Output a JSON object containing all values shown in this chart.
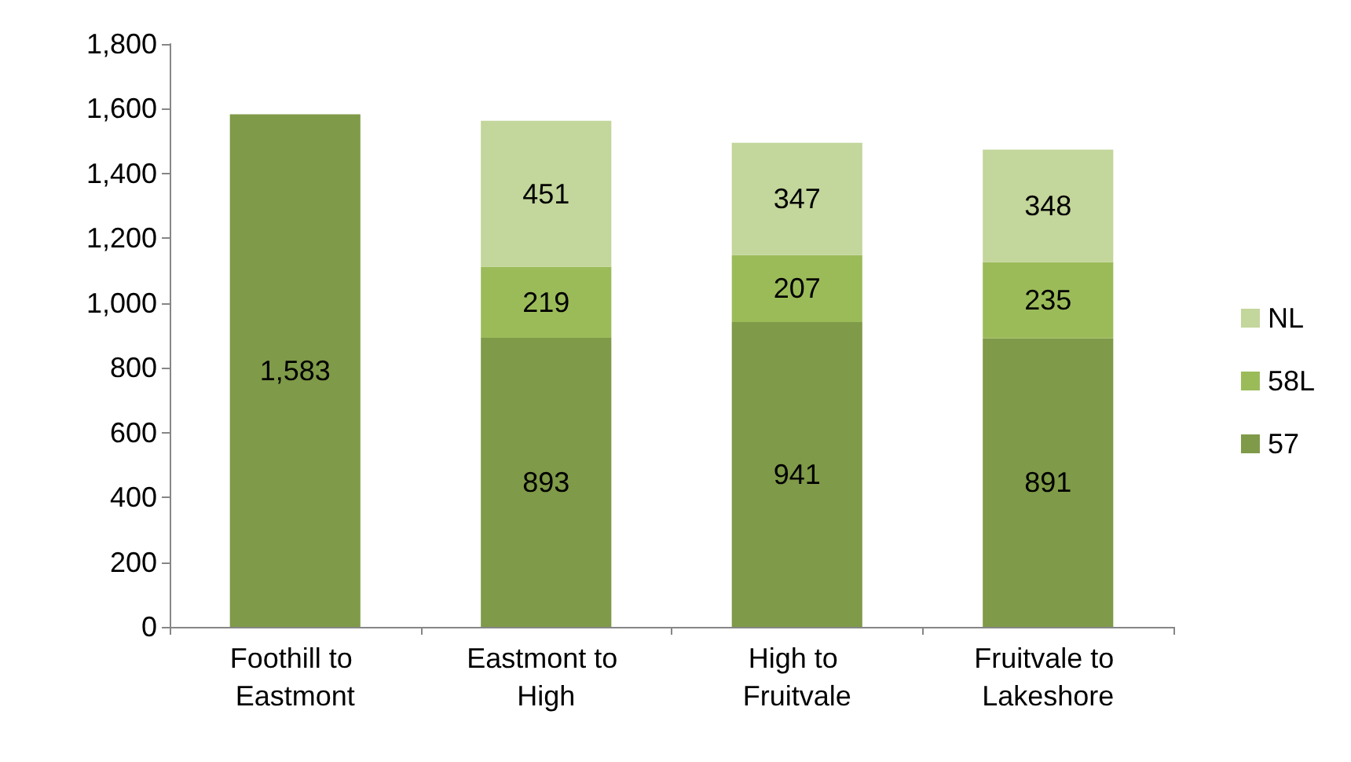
{
  "chart_data": {
    "type": "bar",
    "stacked": true,
    "categories": [
      "Foothill to Eastmont",
      "Eastmont to High",
      "High to Fruitvale",
      "Fruitvale to Lakeshore"
    ],
    "series": [
      {
        "name": "57",
        "color": "#7f9a48",
        "values": [
          1583,
          893,
          941,
          891
        ],
        "value_labels": [
          "1,583",
          "893",
          "941",
          "891"
        ]
      },
      {
        "name": "58L",
        "color": "#9bbb59",
        "values": [
          null,
          219,
          207,
          235
        ],
        "value_labels": [
          null,
          "219",
          "207",
          "235"
        ]
      },
      {
        "name": "NL",
        "color": "#c3d69b",
        "values": [
          null,
          451,
          347,
          348
        ],
        "value_labels": [
          null,
          "451",
          "347",
          "348"
        ]
      }
    ],
    "ylim": [
      0,
      1800
    ],
    "yticks": [
      0,
      200,
      400,
      600,
      800,
      {
        "value": 1000,
        "label": "1,000"
      },
      {
        "value": 1200,
        "label": "1,200"
      },
      {
        "value": 1400,
        "label": "1,400"
      },
      {
        "value": 1600,
        "label": "1,600"
      },
      {
        "value": 1800,
        "label": "1,800"
      }
    ],
    "grid": false,
    "legend": "right"
  }
}
